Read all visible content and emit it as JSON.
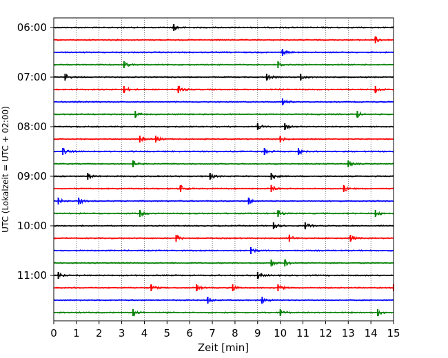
{
  "chart_data": {
    "type": "line",
    "title": "",
    "xlabel": "Zeit  [min]",
    "ylabel": "UTC (Lokalzeit = UTC + 02:00)",
    "xlim": [
      0,
      15
    ],
    "x_ticks": [
      0,
      1,
      2,
      3,
      4,
      5,
      6,
      7,
      8,
      9,
      10,
      11,
      12,
      13,
      14,
      15
    ],
    "x_tick_labels": [
      "0",
      "1",
      "2",
      "3",
      "4",
      "5",
      "6",
      "7",
      "8",
      "9",
      "10",
      "11",
      "12",
      "13",
      "14",
      "15"
    ],
    "y_tick_labels": [
      "06:00",
      "07:00",
      "08:00",
      "09:00",
      "10:00",
      "11:00"
    ],
    "y_tick_rows": [
      0,
      4,
      8,
      12,
      16,
      20
    ],
    "row_interval_min": 15,
    "grid_x": true,
    "grid_x_style": "dotted",
    "rows": 24,
    "color_cycle": [
      "#000000",
      "#ff0000",
      "#0000ff",
      "#008000"
    ],
    "events": [
      [
        5.3
      ],
      [
        14.2
      ],
      [
        10.1
      ],
      [
        3.1,
        9.9
      ],
      [
        0.5,
        9.4,
        10.9
      ],
      [
        3.1,
        5.5,
        14.2
      ],
      [
        10.1
      ],
      [
        3.6,
        13.4
      ],
      [
        9.0,
        10.2
      ],
      [
        3.8,
        4.5,
        10.0
      ],
      [
        0.4,
        9.3,
        10.8
      ],
      [
        3.5,
        13.0
      ],
      [
        1.5,
        6.9,
        9.6
      ],
      [
        5.6,
        9.6,
        12.8
      ],
      [
        0.2,
        1.1,
        8.6
      ],
      [
        3.8,
        9.9,
        14.2
      ],
      [
        9.7,
        11.1
      ],
      [
        5.4,
        10.4,
        13.1
      ],
      [
        8.7
      ],
      [
        9.6,
        10.2
      ],
      [
        0.2,
        9.0
      ],
      [
        4.3,
        6.3,
        7.9,
        9.9,
        15.0
      ],
      [
        6.8,
        9.2
      ],
      [
        3.5,
        10.0,
        14.3
      ]
    ]
  }
}
